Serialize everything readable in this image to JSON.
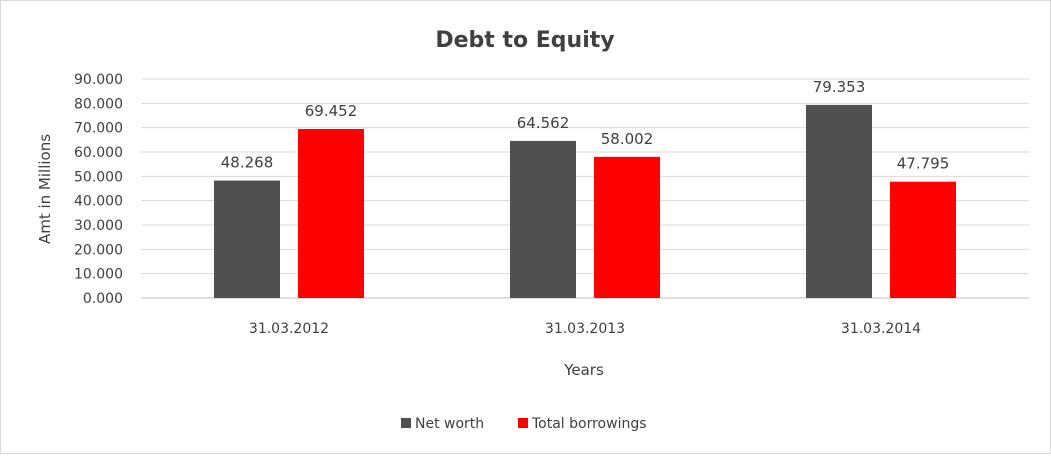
{
  "chart_data": {
    "type": "bar",
    "title": "Debt to Equity",
    "xlabel": "Years",
    "ylabel": "Amt in Millions",
    "categories": [
      "31.03.2012",
      "31.03.2013",
      "31.03.2014"
    ],
    "series": [
      {
        "name": "Net worth",
        "values": [
          48.268,
          64.562,
          79.353
        ],
        "value_labels": [
          "48.268",
          "64.562",
          "79.353"
        ],
        "color": "#505050"
      },
      {
        "name": "Total borrowings",
        "values": [
          69.452,
          58.002,
          47.795
        ],
        "value_labels": [
          "69.452",
          "58.002",
          "47.795"
        ],
        "color": "#ff0000"
      }
    ],
    "ylim": [
      0,
      90
    ],
    "yticks": [
      0,
      10,
      20,
      30,
      40,
      50,
      60,
      70,
      80,
      90
    ],
    "ytick_labels": [
      "0.000",
      "10.000",
      "20.000",
      "30.000",
      "40.000",
      "50.000",
      "60.000",
      "70.000",
      "80.000",
      "90.000"
    ],
    "grid": true,
    "legend_position": "bottom"
  }
}
